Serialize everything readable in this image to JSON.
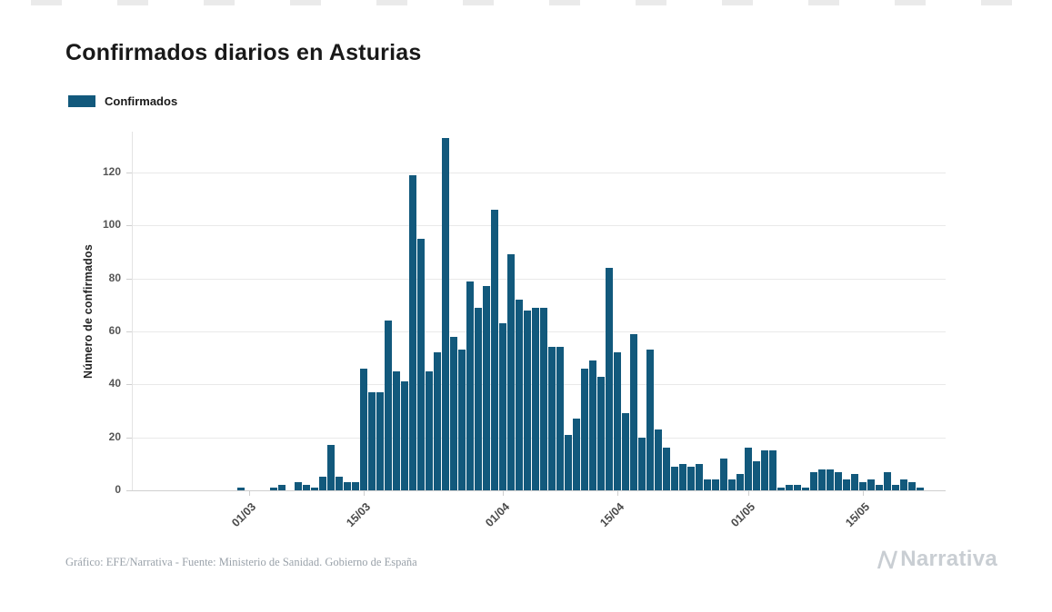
{
  "colors": {
    "bar": "#12597c",
    "grid": "#e9e9e9",
    "axis": "#cfcfcf",
    "brand": "#c9ced3",
    "title": "#191919",
    "tick_text": "#555555",
    "credit_text": "#9aa2aa"
  },
  "footer": {
    "credit": "Gráfico: EFE/Narrativa - Fuente: Ministerio de Sanidad. Gobierno de España",
    "brand": "Narrativa"
  },
  "chart_data": {
    "type": "bar",
    "title": "Confirmados diarios en Asturias",
    "legend_label": "Confirmados",
    "legend_position": "top-left",
    "xlabel": "",
    "ylabel": "Número de confirmados",
    "ylim": [
      0,
      135
    ],
    "grid": "horizontal",
    "y_ticks": [
      0,
      20,
      40,
      60,
      80,
      100,
      120
    ],
    "x_tick_labels": [
      "01/03",
      "15/03",
      "01/04",
      "15/04",
      "01/05",
      "15/05"
    ],
    "x": [
      "20/02",
      "21/02",
      "22/02",
      "23/02",
      "24/02",
      "25/02",
      "26/02",
      "27/02",
      "28/02",
      "29/02",
      "01/03",
      "02/03",
      "03/03",
      "04/03",
      "05/03",
      "06/03",
      "07/03",
      "08/03",
      "09/03",
      "10/03",
      "11/03",
      "12/03",
      "13/03",
      "14/03",
      "15/03",
      "16/03",
      "17/03",
      "18/03",
      "19/03",
      "20/03",
      "21/03",
      "22/03",
      "23/03",
      "24/03",
      "25/03",
      "26/03",
      "27/03",
      "28/03",
      "29/03",
      "30/03",
      "31/03",
      "01/04",
      "02/04",
      "03/04",
      "04/04",
      "05/04",
      "06/04",
      "07/04",
      "08/04",
      "09/04",
      "10/04",
      "11/04",
      "12/04",
      "13/04",
      "14/04",
      "15/04",
      "16/04",
      "17/04",
      "18/04",
      "19/04",
      "20/04",
      "21/04",
      "22/04",
      "23/04",
      "24/04",
      "25/04",
      "26/04",
      "27/04",
      "28/04",
      "29/04",
      "30/04",
      "01/05",
      "02/05",
      "03/05",
      "04/05",
      "05/05",
      "06/05",
      "07/05",
      "08/05",
      "09/05",
      "10/05",
      "11/05",
      "12/05",
      "13/05",
      "14/05",
      "15/05",
      "16/05",
      "17/05",
      "18/05",
      "19/05",
      "20/05",
      "21/05",
      "22/05",
      "23/05",
      "24/05"
    ],
    "values": [
      0,
      0,
      0,
      0,
      0,
      0,
      0,
      0,
      0,
      1,
      0,
      0,
      0,
      1,
      2,
      0,
      3,
      2,
      1,
      5,
      17,
      5,
      3,
      3,
      46,
      37,
      37,
      64,
      45,
      41,
      119,
      95,
      45,
      52,
      133,
      58,
      53,
      79,
      69,
      77,
      106,
      63,
      89,
      72,
      68,
      69,
      69,
      54,
      54,
      21,
      27,
      46,
      49,
      43,
      84,
      52,
      29,
      59,
      20,
      53,
      23,
      16,
      9,
      10,
      9,
      10,
      4,
      4,
      12,
      4,
      6,
      16,
      11,
      15,
      15,
      1,
      2,
      2,
      1,
      7,
      8,
      8,
      7,
      4,
      6,
      3,
      4,
      2,
      7,
      2,
      4,
      3,
      1,
      0,
      0
    ]
  }
}
